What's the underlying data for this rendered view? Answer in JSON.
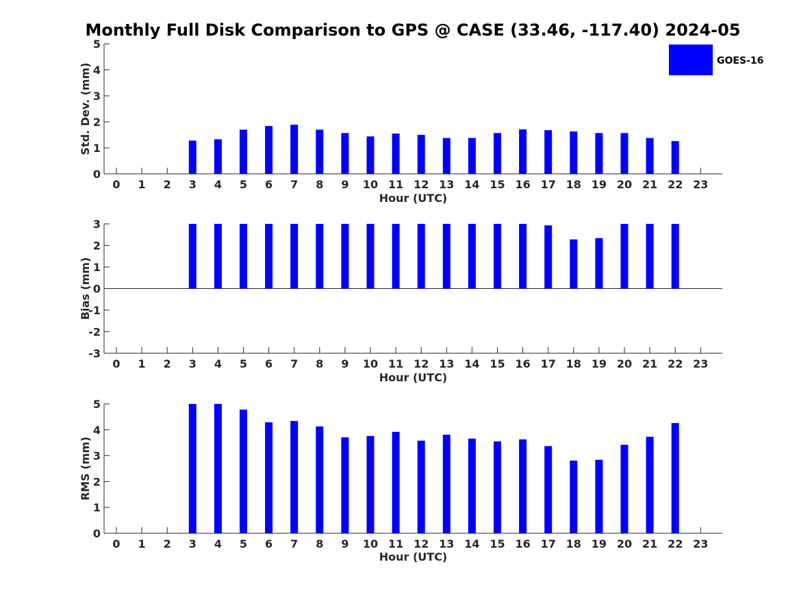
{
  "title": "Monthly Full Disk Comparison to GPS @ CASE (33.46, -117.40) 2024-05",
  "legend": {
    "label": "GOES-16",
    "color": "#0000ff",
    "placement": "top-right"
  },
  "chart_data": [
    {
      "type": "bar",
      "panel": "std-dev",
      "xlabel": "Hour (UTC)",
      "ylabel": "Std. Dev. (mm)",
      "ylim": [
        0,
        5
      ],
      "yticks": [
        0,
        1,
        2,
        3,
        4,
        5
      ],
      "categories": [
        "0",
        "1",
        "2",
        "3",
        "4",
        "5",
        "6",
        "7",
        "8",
        "9",
        "10",
        "11",
        "12",
        "13",
        "14",
        "15",
        "16",
        "17",
        "18",
        "19",
        "20",
        "21",
        "22",
        "23"
      ],
      "series": [
        {
          "name": "GOES-16",
          "color": "#0000ff",
          "values": [
            null,
            null,
            null,
            1.28,
            1.33,
            1.7,
            1.84,
            1.89,
            1.7,
            1.57,
            1.44,
            1.55,
            1.5,
            1.38,
            1.38,
            1.57,
            1.71,
            1.68,
            1.63,
            1.57,
            1.57,
            1.38,
            1.26,
            null
          ]
        }
      ]
    },
    {
      "type": "bar",
      "panel": "bias",
      "xlabel": "Hour (UTC)",
      "ylabel": "Bias (mm)",
      "ylim": [
        -3,
        3
      ],
      "yticks": [
        -3,
        -2,
        -1,
        0,
        1,
        2,
        3
      ],
      "categories": [
        "0",
        "1",
        "2",
        "3",
        "4",
        "5",
        "6",
        "7",
        "8",
        "9",
        "10",
        "11",
        "12",
        "13",
        "14",
        "15",
        "16",
        "17",
        "18",
        "19",
        "20",
        "21",
        "22",
        "23"
      ],
      "series": [
        {
          "name": "GOES-16",
          "color": "#0000ff",
          "values": [
            null,
            null,
            null,
            3.0,
            3.0,
            3.0,
            3.0,
            3.0,
            3.0,
            3.0,
            3.0,
            3.0,
            3.0,
            3.0,
            3.0,
            3.0,
            3.0,
            2.93,
            2.28,
            2.34,
            3.0,
            3.0,
            3.0,
            null
          ]
        }
      ]
    },
    {
      "type": "bar",
      "panel": "rms",
      "xlabel": "Hour (UTC)",
      "ylabel": "RMS (mm)",
      "ylim": [
        0,
        5
      ],
      "yticks": [
        0,
        1,
        2,
        3,
        4,
        5
      ],
      "categories": [
        "0",
        "1",
        "2",
        "3",
        "4",
        "5",
        "6",
        "7",
        "8",
        "9",
        "10",
        "11",
        "12",
        "13",
        "14",
        "15",
        "16",
        "17",
        "18",
        "19",
        "20",
        "21",
        "22",
        "23"
      ],
      "series": [
        {
          "name": "GOES-16",
          "color": "#0000ff",
          "values": [
            null,
            null,
            null,
            5.0,
            5.0,
            4.78,
            4.29,
            4.34,
            4.13,
            3.71,
            3.76,
            3.92,
            3.58,
            3.81,
            3.66,
            3.55,
            3.63,
            3.37,
            2.81,
            2.84,
            3.42,
            3.73,
            4.26,
            null
          ]
        }
      ]
    }
  ]
}
